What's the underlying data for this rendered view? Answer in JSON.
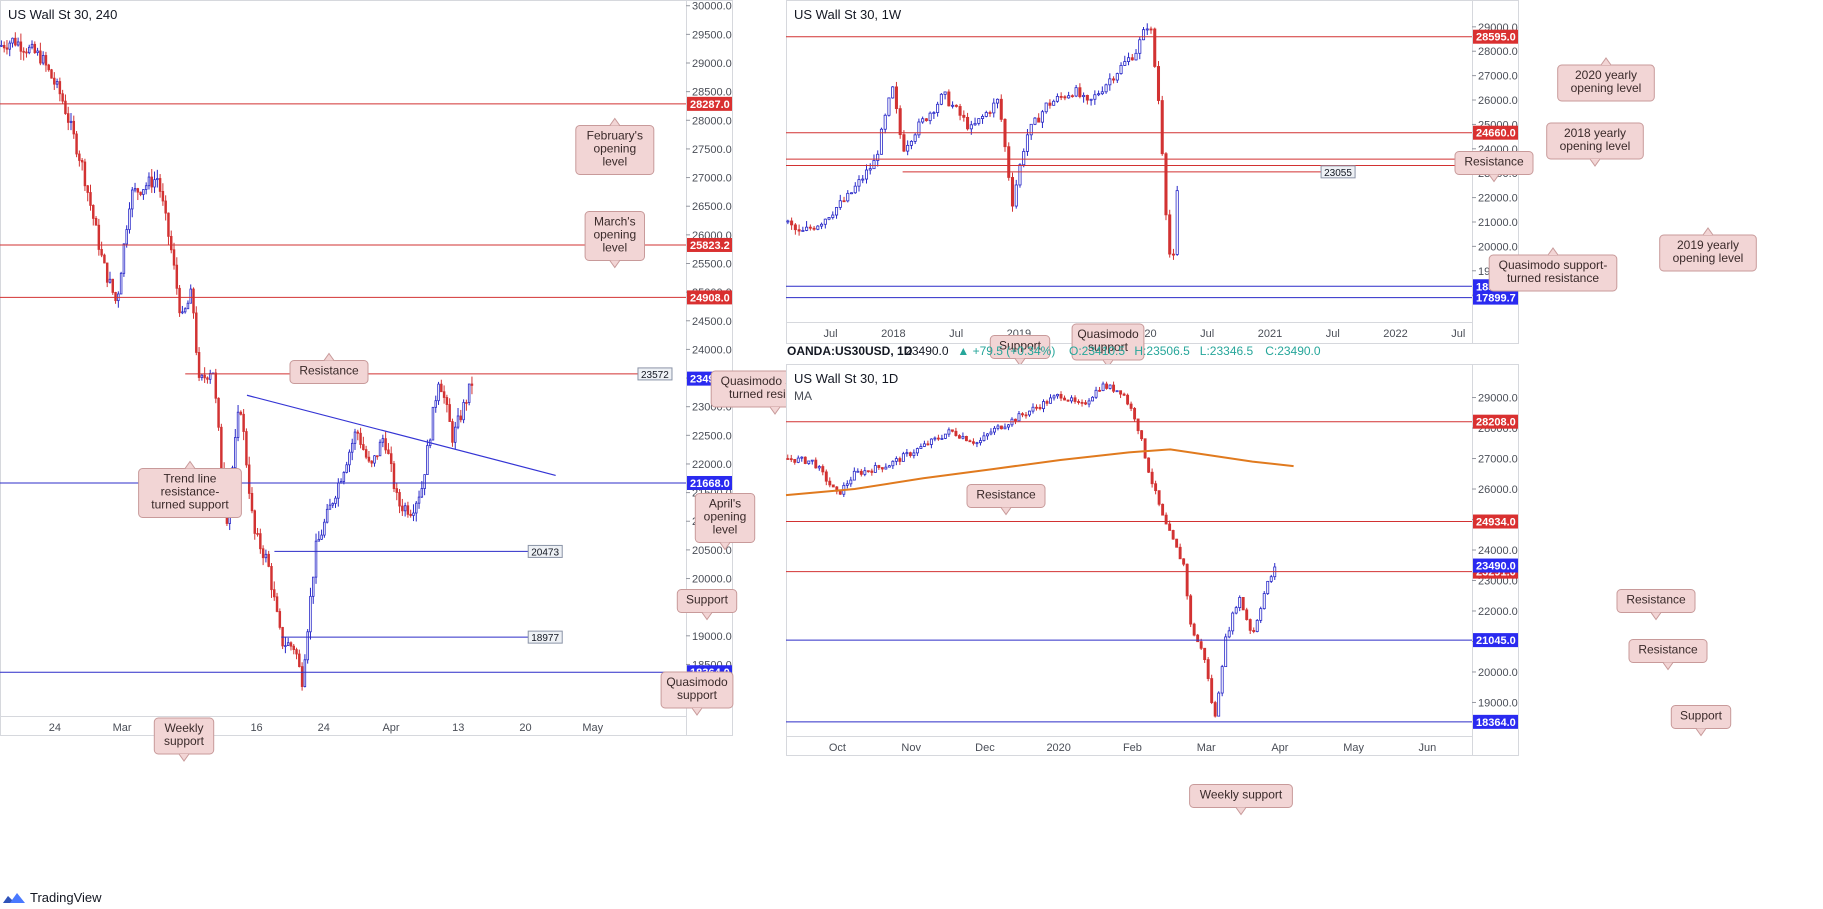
{
  "colors": {
    "up": "#2828c8",
    "down": "#d23232",
    "resistance": "#d23232",
    "support": "#2c2cc8",
    "callout_bg": "#f2d5d5",
    "callout_border": "#c89a9a",
    "ma": "#e07a1e",
    "trendline": "#3434d4",
    "price_tag": "#2a2af0",
    "red_tag": "#d93030"
  },
  "footer": {
    "brand": "TradingView",
    "icon": "tradingview-logo-icon"
  },
  "chart_data": [
    {
      "id": "h4",
      "type": "candlestick",
      "title": "US Wall St 30, 240",
      "ylim": [
        17600,
        30100
      ],
      "yticks": [
        "30000.0",
        "29500.0",
        "29000.0",
        "28500.0",
        "28000.0",
        "27500.0",
        "27000.0",
        "26500.0",
        "26000.0",
        "25500.0",
        "25000.0",
        "24500.0",
        "24000.0",
        "23500.0",
        "23000.0",
        "22500.0",
        "22000.0",
        "21500.0",
        "21000.0",
        "20500.0",
        "20000.0",
        "19500.0",
        "19000.0",
        "18500.0",
        "18000.0"
      ],
      "xticks": [
        "24",
        "Mar",
        "9",
        "16",
        "24",
        "Apr",
        "13",
        "20",
        "May"
      ],
      "path": [
        [
          0,
          29300
        ],
        [
          0.02,
          29400
        ],
        [
          0.06,
          29100
        ],
        [
          0.09,
          28400
        ],
        [
          0.12,
          27200
        ],
        [
          0.15,
          25500
        ],
        [
          0.17,
          24800
        ],
        [
          0.19,
          26700
        ],
        [
          0.23,
          27000
        ],
        [
          0.25,
          25700
        ],
        [
          0.265,
          24500
        ],
        [
          0.28,
          25000
        ],
        [
          0.29,
          23400
        ],
        [
          0.31,
          23700
        ],
        [
          0.33,
          21000
        ],
        [
          0.35,
          23100
        ],
        [
          0.37,
          20800
        ],
        [
          0.39,
          20300
        ],
        [
          0.41,
          18900
        ],
        [
          0.43,
          18800
        ],
        [
          0.44,
          18200
        ],
        [
          0.46,
          20500
        ],
        [
          0.48,
          21200
        ],
        [
          0.52,
          22600
        ],
        [
          0.54,
          21900
        ],
        [
          0.56,
          22500
        ],
        [
          0.58,
          21300
        ],
        [
          0.6,
          21200
        ],
        [
          0.615,
          21600
        ],
        [
          0.64,
          23550
        ],
        [
          0.66,
          22450
        ],
        [
          0.69,
          23490
        ]
      ],
      "levels": [
        {
          "value": 28287,
          "label": "28287.0",
          "kind": "resistance"
        },
        {
          "value": 25823.2,
          "label": "25823.2",
          "kind": "resistance"
        },
        {
          "value": 24908,
          "label": "24908.0",
          "kind": "resistance"
        },
        {
          "value": 23572,
          "label": "23572",
          "kind": "resistance",
          "boxed": true
        },
        {
          "value": 21668,
          "label": "21668.0",
          "kind": "support"
        },
        {
          "value": 20473,
          "label": "20473",
          "kind": "support",
          "boxed": true
        },
        {
          "value": 18977,
          "label": "18977",
          "kind": "support",
          "boxed": true
        },
        {
          "value": 18364,
          "label": "18364.0",
          "kind": "support"
        }
      ],
      "last_price": "23490.0",
      "annotations": [
        "February's opening level",
        "March's opening level",
        "Resistance",
        "Quasimodo support-turned resistance",
        "Trend line resistance-turned support",
        "April's opening level",
        "Support",
        "Quasimodo support",
        "Weekly support"
      ]
    },
    {
      "id": "weekly",
      "type": "candlestick",
      "title": "US Wall St 30, 1W",
      "ylim": [
        16900,
        30100
      ],
      "yticks": [
        "30000.0",
        "29000.0",
        "28000.0",
        "27000.0",
        "26000.0",
        "25000.0",
        "24000.0",
        "23000.0",
        "22000.0",
        "21000.0",
        "20000.0",
        "19000.0",
        "18000.0"
      ],
      "xticks": [
        "Jul",
        "2018",
        "Jul",
        "2019",
        "Jul",
        "2020",
        "Jul",
        "2021",
        "Jul",
        "2022",
        "Jul"
      ],
      "path": [
        [
          0,
          21000
        ],
        [
          0.02,
          20500
        ],
        [
          0.05,
          21000
        ],
        [
          0.09,
          22000
        ],
        [
          0.13,
          23500
        ],
        [
          0.155,
          26500
        ],
        [
          0.17,
          24000
        ],
        [
          0.19,
          24800
        ],
        [
          0.23,
          26200
        ],
        [
          0.27,
          24800
        ],
        [
          0.31,
          26000
        ],
        [
          0.33,
          21800
        ],
        [
          0.35,
          24500
        ],
        [
          0.38,
          25800
        ],
        [
          0.42,
          26400
        ],
        [
          0.44,
          25800
        ],
        [
          0.47,
          26800
        ],
        [
          0.51,
          28000
        ],
        [
          0.53,
          29300
        ],
        [
          0.545,
          25500
        ],
        [
          0.555,
          21000
        ],
        [
          0.563,
          18600
        ],
        [
          0.573,
          23490
        ]
      ],
      "levels": [
        {
          "value": 28595,
          "label": "28595.0",
          "kind": "resistance"
        },
        {
          "value": 24660,
          "label": "24660.0",
          "kind": "resistance"
        },
        {
          "value": 23578,
          "label": "23578.0",
          "kind": "resistance"
        },
        {
          "value": 23313,
          "label": "23313.0",
          "kind": "resistance"
        },
        {
          "value": 23055,
          "label": "23055",
          "kind": "resistance",
          "boxed": true
        },
        {
          "value": 18364.8,
          "label": "18364.8",
          "kind": "support"
        },
        {
          "value": 17899.7,
          "label": "17899.7",
          "kind": "support"
        }
      ],
      "last_price": "23490.0",
      "annotations": [
        "2020 yearly opening level",
        "2018 yearly opening level",
        "Resistance",
        "Quasimodo support-turned resistance",
        "2019 yearly opening level",
        "Support",
        "Quasimodo support"
      ]
    },
    {
      "id": "daily",
      "type": "candlestick",
      "symbol_line": {
        "symbol": "OANDA:US30USD, 1D",
        "last": "23490.0",
        "change": "▲ +79.5 (+0.34%)",
        "O": "23410.5",
        "H": "23506.5",
        "L": "23346.5",
        "C": "23490.0"
      },
      "title": "US Wall St 30, 1D",
      "ma_label": "MA",
      "ylim": [
        17900,
        30100
      ],
      "yticks": [
        "30000.0",
        "29000.0",
        "28000.0",
        "27000.0",
        "26000.0",
        "25000.0",
        "24000.0",
        "23000.0",
        "22000.0",
        "21000.0",
        "20000.0",
        "19000.0"
      ],
      "xticks": [
        "Oct",
        "Nov",
        "Dec",
        "2020",
        "Feb",
        "Mar",
        "Apr",
        "May",
        "Jun",
        "Jul"
      ],
      "path": [
        [
          0,
          27000
        ],
        [
          0.04,
          26900
        ],
        [
          0.075,
          25800
        ],
        [
          0.1,
          26500
        ],
        [
          0.15,
          26800
        ],
        [
          0.2,
          27400
        ],
        [
          0.24,
          27900
        ],
        [
          0.28,
          27500
        ],
        [
          0.3,
          27900
        ],
        [
          0.35,
          28500
        ],
        [
          0.4,
          29100
        ],
        [
          0.43,
          28700
        ],
        [
          0.46,
          29400
        ],
        [
          0.49,
          29200
        ],
        [
          0.51,
          28300
        ],
        [
          0.53,
          26500
        ],
        [
          0.55,
          25000
        ],
        [
          0.58,
          23500
        ],
        [
          0.59,
          21500
        ],
        [
          0.61,
          20500
        ],
        [
          0.625,
          18400
        ],
        [
          0.64,
          21000
        ],
        [
          0.66,
          22500
        ],
        [
          0.68,
          21200
        ],
        [
          0.7,
          22800
        ],
        [
          0.715,
          23490
        ]
      ],
      "ma": [
        [
          0,
          25800
        ],
        [
          0.1,
          26000
        ],
        [
          0.2,
          26350
        ],
        [
          0.3,
          26650
        ],
        [
          0.4,
          26950
        ],
        [
          0.5,
          27200
        ],
        [
          0.56,
          27300
        ],
        [
          0.62,
          27100
        ],
        [
          0.68,
          26900
        ],
        [
          0.74,
          26750
        ]
      ],
      "levels": [
        {
          "value": 28208,
          "label": "28208.0",
          "kind": "resistance"
        },
        {
          "value": 24934,
          "label": "24934.0",
          "kind": "resistance"
        },
        {
          "value": 23291,
          "label": "23291.0",
          "kind": "resistance"
        },
        {
          "value": 21045,
          "label": "21045.0",
          "kind": "support"
        },
        {
          "value": 18364,
          "label": "18364.0",
          "kind": "support"
        }
      ],
      "last_price": "23490.0",
      "annotations": [
        "Resistance",
        "Resistance",
        "Resistance",
        "Support",
        "Weekly support"
      ]
    }
  ]
}
